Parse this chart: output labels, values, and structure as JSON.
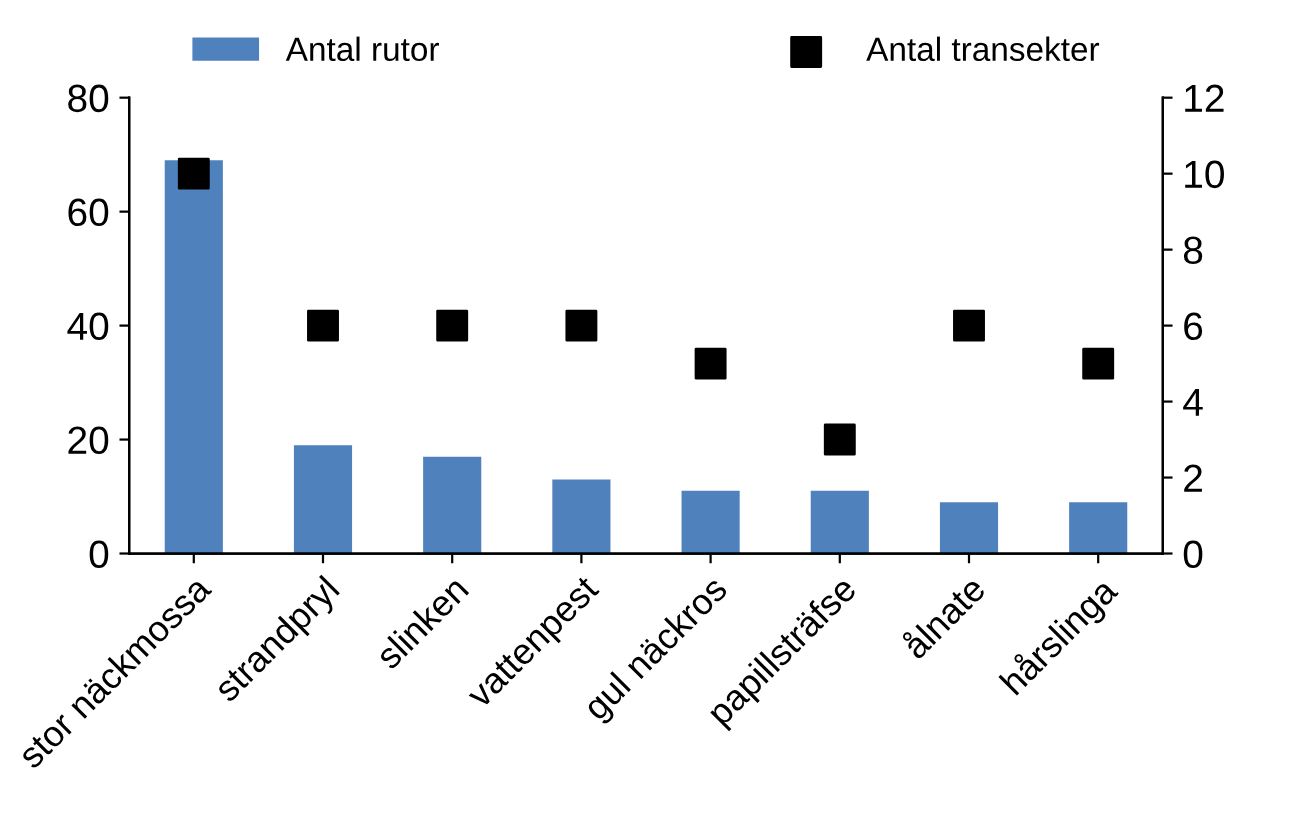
{
  "chart_data": {
    "type": "bar",
    "categories": [
      "stor näckmossa",
      "strandpryl",
      "slinken",
      "vattenpest",
      "gul näckros",
      "papillsträfse",
      "ålnate",
      "hårslinga"
    ],
    "series": [
      {
        "name": "Antal rutor",
        "color": "#4f81bd",
        "values": [
          69,
          19,
          17,
          13,
          11,
          11,
          9,
          9
        ]
      },
      {
        "name": "Antal transekter",
        "type": "scatter",
        "axis": "y2",
        "color": "#000000",
        "marker": "square",
        "values": [
          10,
          6,
          6,
          6,
          5,
          3,
          6,
          5
        ]
      }
    ],
    "ylim": [
      0,
      80
    ],
    "yticks": [
      0,
      20,
      40,
      60,
      80
    ],
    "y2lim": [
      0,
      12
    ],
    "y2ticks": [
      0,
      2,
      4,
      6,
      8,
      10,
      12
    ],
    "legend": "top",
    "grid": false
  }
}
